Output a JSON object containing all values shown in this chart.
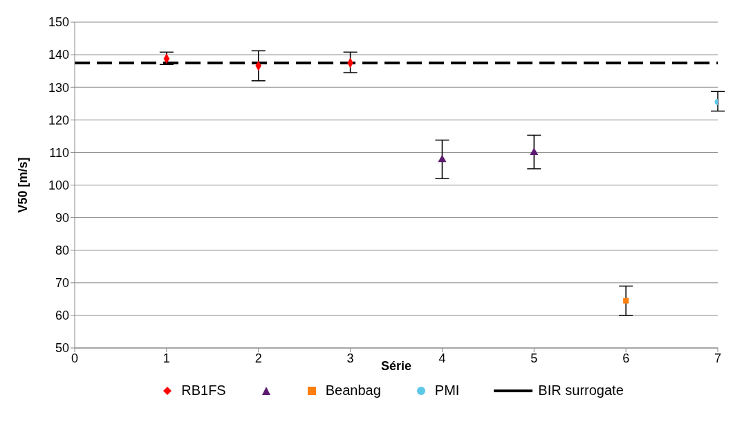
{
  "chart_data": {
    "type": "scatter",
    "xlabel": "Série",
    "ylabel": "V50 [m/s]",
    "xlim": [
      0,
      7
    ],
    "xticks": [
      0,
      1,
      2,
      3,
      4,
      5,
      6,
      7
    ],
    "ylim": [
      50,
      150
    ],
    "yticks": [
      50,
      60,
      70,
      80,
      90,
      100,
      110,
      120,
      130,
      140,
      150
    ],
    "grid": "y",
    "legend": "bottom",
    "series": [
      {
        "name": "RB1FS",
        "color": "#ff0000",
        "marker": "diamond",
        "x": [
          1,
          2,
          3
        ],
        "values": [
          138.8,
          136.6,
          137.5
        ],
        "errors": [
          [
            137,
            140.8
          ],
          [
            132,
            141.2
          ],
          [
            134.5,
            140.8
          ]
        ]
      },
      {
        "color": "#5b1a6e",
        "marker": "triangle",
        "x": [
          4,
          5
        ],
        "values": [
          107.8,
          110
        ],
        "errors": [
          [
            102,
            113.8
          ],
          [
            105,
            115.3
          ]
        ]
      },
      {
        "name": "Beanbag",
        "color": "#ff7f0e",
        "marker": "square",
        "x": [
          6
        ],
        "values": [
          64.5
        ],
        "errors": [
          [
            60,
            69
          ]
        ]
      },
      {
        "name": "PMI",
        "color": "#5bc8e8",
        "marker": "circle",
        "x": [
          7
        ],
        "values": [
          125.5
        ],
        "errors": [
          [
            122.7,
            128.7
          ]
        ]
      }
    ],
    "ref_lines": [
      {
        "axis": "y",
        "value": 137.5,
        "label": "BIR surrogate",
        "color": "#000000",
        "line_style": "dashed"
      }
    ]
  }
}
